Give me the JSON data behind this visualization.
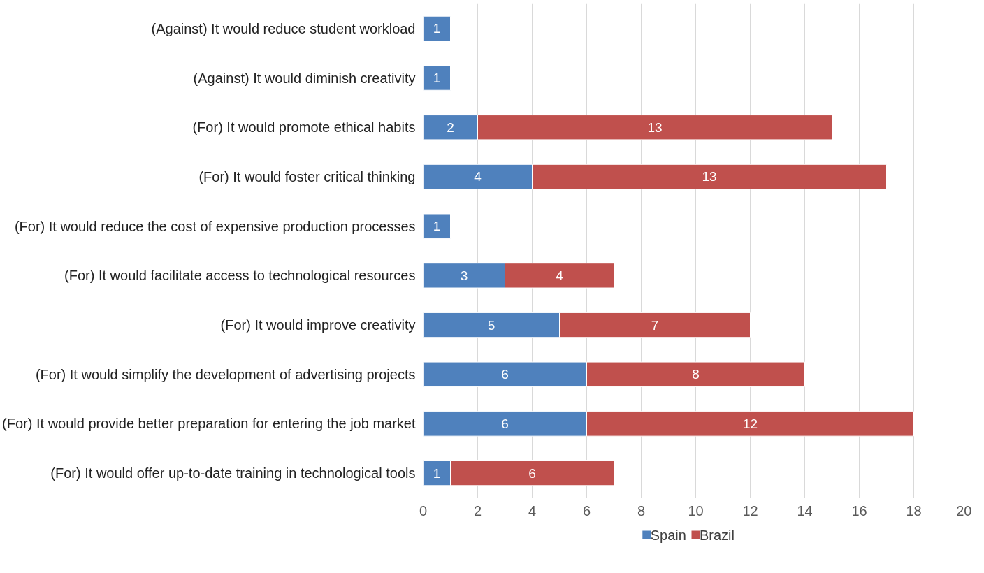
{
  "chart_data": {
    "type": "bar",
    "orientation": "horizontal",
    "stacked": true,
    "categories": [
      "(Against) It would reduce student workload",
      "(Against) It would diminish creativity",
      "(For) It would promote ethical habits",
      "(For) It would foster critical thinking",
      "(For) It would reduce the cost of expensive production processes",
      "(For) It would facilitate access to technological resources",
      "(For) It would improve creativity",
      "(For) It would simplify the development of advertising projects",
      "(For) It would provide better preparation for entering the job market",
      "(For) It would offer up-to-date training in technological tools"
    ],
    "series": [
      {
        "name": "Spain",
        "color": "#4f81bd",
        "values": [
          1,
          1,
          2,
          4,
          1,
          3,
          5,
          6,
          6,
          1
        ]
      },
      {
        "name": "Brazil",
        "color": "#c0504d",
        "values": [
          null,
          null,
          13,
          13,
          null,
          4,
          7,
          8,
          12,
          6
        ]
      }
    ],
    "xlim": [
      0,
      20
    ],
    "xticks": [
      0,
      2,
      4,
      6,
      8,
      10,
      12,
      14,
      16,
      18,
      20
    ],
    "grid": "x",
    "legend": "bottom",
    "data_labels": true
  }
}
